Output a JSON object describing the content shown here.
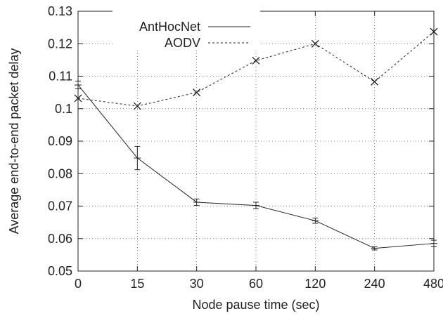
{
  "chart_data": {
    "type": "line",
    "title": "",
    "xlabel": "Node pause time (sec)",
    "ylabel": "Average end-to-end packet delay",
    "categories": [
      "0",
      "15",
      "30",
      "60",
      "120",
      "240",
      "480"
    ],
    "y_ticks": [
      "0.05",
      "0.06",
      "0.07",
      "0.08",
      "0.09",
      "0.1",
      "0.11",
      "0.12",
      "0.13"
    ],
    "ylim": [
      0.05,
      0.13
    ],
    "grid": true,
    "legend_position": "top-left",
    "series": [
      {
        "name": "AntHocNet",
        "line_style": "solid",
        "marker": "plus-with-error-bars",
        "values": [
          0.1073,
          0.0848,
          0.0712,
          0.0702,
          0.0655,
          0.057,
          0.0585
        ],
        "error": [
          0.0012,
          0.0036,
          0.001,
          0.001,
          0.0008,
          0.0005,
          0.001
        ]
      },
      {
        "name": "AODV",
        "line_style": "dashed",
        "marker": "x",
        "values": [
          0.1032,
          0.1008,
          0.105,
          0.1148,
          0.12,
          0.1083,
          0.1237
        ]
      }
    ]
  }
}
